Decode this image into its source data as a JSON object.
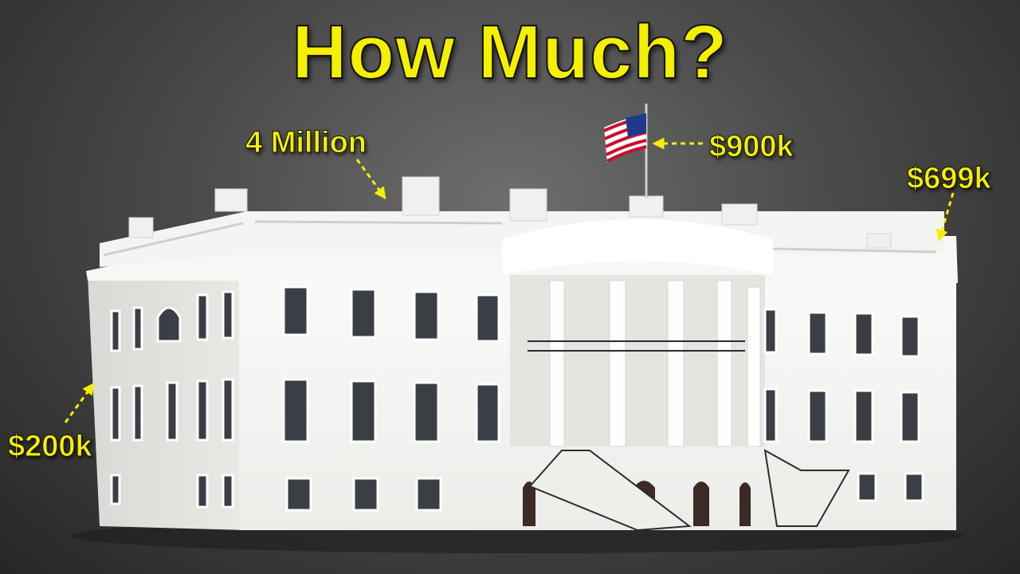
{
  "title": "How Much?",
  "labels": {
    "roof": "4 Million",
    "flag": "$900k",
    "right_wing": "$699k",
    "left_corner": "$200k"
  },
  "colors": {
    "highlight": "#f5f000",
    "building": "#f2f2f0",
    "background": "#4a4a4a"
  }
}
